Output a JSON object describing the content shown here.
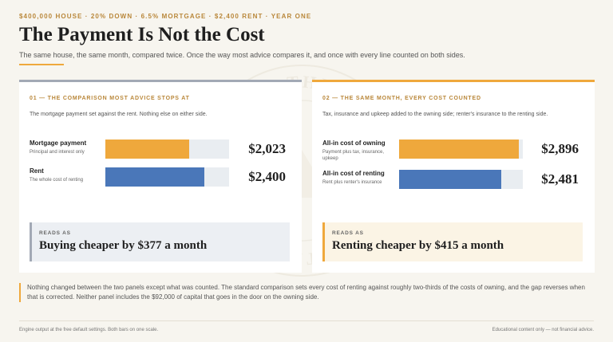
{
  "header": {
    "eyebrow": "$400,000 HOUSE · 20% DOWN · 6.5% MORTGAGE · $2,400 RENT · YEAR ONE",
    "title": "The Payment Is Not the Cost",
    "subtitle": "The same house, the same month, compared twice. Once the way most advice compares it, and once with every line counted on both sides."
  },
  "scale_max": 3000,
  "watermark": {
    "icon": "seal-watermark",
    "ring_text": "STEPS TO THE HOME · ONE AT A TIME"
  },
  "panels": [
    {
      "kicker": "01 — THE COMPARISON MOST ADVICE STOPS AT",
      "description": "The mortgage payment set against the rent. Nothing else on either side.",
      "rows": [
        {
          "label": "Mortgage payment",
          "sub": "Principal and interest only",
          "amount": "$2,023",
          "value": 2023,
          "color": "orange"
        },
        {
          "label": "Rent",
          "sub": "The whole cost of renting",
          "amount": "$2,400",
          "value": 2400,
          "color": "blue"
        }
      ],
      "reads_label": "READS AS",
      "reads_text": "Buying cheaper by $377 a month"
    },
    {
      "kicker": "02 — THE SAME MONTH, EVERY COST COUNTED",
      "description": "Tax, insurance and upkeep added to the owning side; renter's insurance to the renting side.",
      "rows": [
        {
          "label": "All-in cost of owning",
          "sub": "Payment plus tax, insurance, upkeep",
          "amount": "$2,896",
          "value": 2896,
          "color": "orange"
        },
        {
          "label": "All-in cost of renting",
          "sub": "Rent plus renter's insurance",
          "amount": "$2,481",
          "value": 2481,
          "color": "blue"
        }
      ],
      "reads_label": "READS AS",
      "reads_text": "Renting cheaper by $415 a month"
    }
  ],
  "note": "Nothing changed between the two panels except what was counted. The standard comparison sets every cost of renting against roughly two-thirds of the costs of owning, and the gap reverses when that is corrected. Neither panel includes the $92,000 of capital that goes in the door on the owning side.",
  "footer": {
    "left": "Engine output at the free default settings. Both bars on one scale.",
    "right": "Educational content only — not financial advice."
  },
  "colors": {
    "accent": "#efa83c",
    "blue": "#4a77b9",
    "gold_text": "#b9873a",
    "slate": "#a2a9b5"
  }
}
